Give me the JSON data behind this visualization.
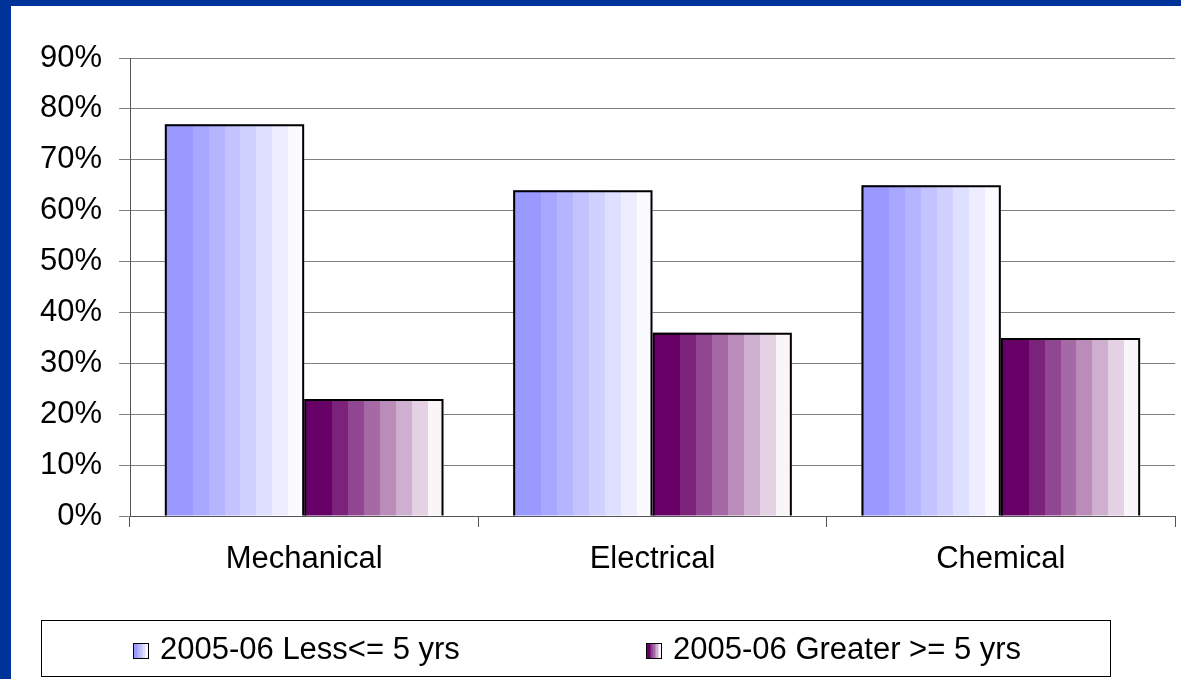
{
  "chart_data": {
    "type": "bar",
    "categories": [
      "Mechanical",
      "Electrical",
      "Chemical"
    ],
    "series": [
      {
        "name": "2005-06 Less<= 5 yrs",
        "color": "#9999ff",
        "values": [
          77,
          64,
          65
        ]
      },
      {
        "name": "2005-06 Greater >= 5 yrs",
        "color": "#660066",
        "values": [
          23,
          36,
          35
        ]
      }
    ],
    "ylim": [
      0,
      90
    ],
    "yticks": [
      {
        "value": 0,
        "label": "0%"
      },
      {
        "value": 10,
        "label": "10%"
      },
      {
        "value": 20,
        "label": "20%"
      },
      {
        "value": 30,
        "label": "30%"
      },
      {
        "value": 40,
        "label": "40%"
      },
      {
        "value": 50,
        "label": "50%"
      },
      {
        "value": 60,
        "label": "60%"
      },
      {
        "value": 70,
        "label": "70%"
      },
      {
        "value": 80,
        "label": "80%"
      },
      {
        "value": 90,
        "label": "90%"
      }
    ],
    "grid": "y",
    "legend": "bottom"
  }
}
